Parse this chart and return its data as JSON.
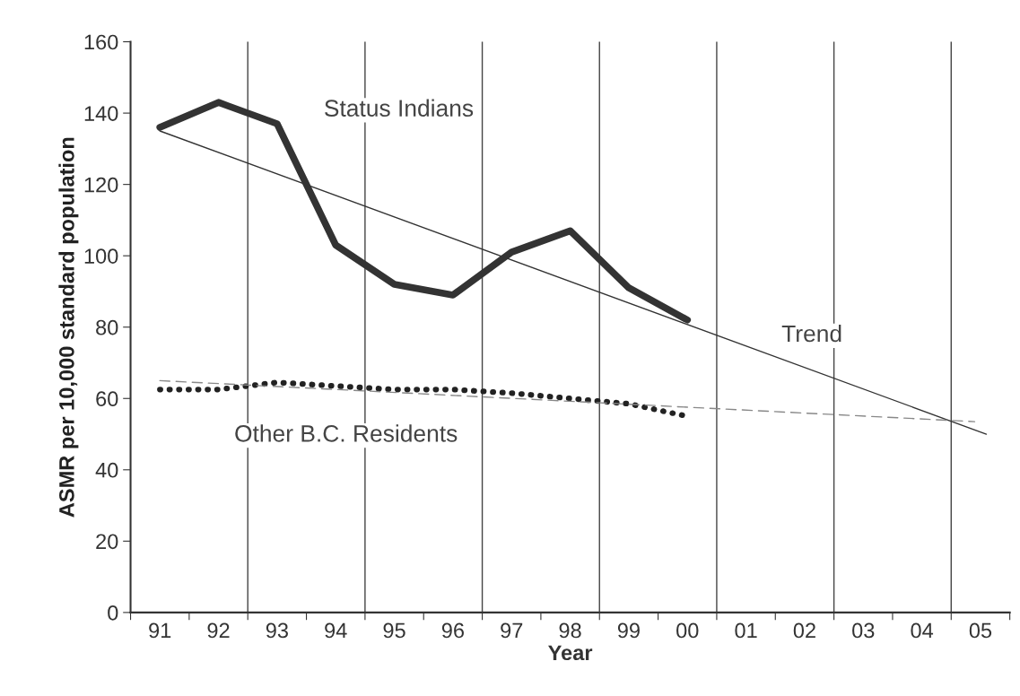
{
  "chart_data": {
    "type": "line",
    "xlabel": "Year",
    "ylabel": "ASMR per 10,000 standard population",
    "xlim": [
      1990.5,
      2005.5
    ],
    "ylim": [
      0,
      160
    ],
    "yticks": [
      0,
      20,
      40,
      60,
      80,
      100,
      120,
      140,
      160
    ],
    "xticks": [
      {
        "value": 1990.5,
        "label": null
      },
      {
        "value": 1991,
        "label": "91"
      },
      {
        "value": 1991.5,
        "label": null
      },
      {
        "value": 1992,
        "label": "92"
      },
      {
        "value": 1992.5,
        "label": null
      },
      {
        "value": 1993,
        "label": "93"
      },
      {
        "value": 1993.5,
        "label": null
      },
      {
        "value": 1994,
        "label": "94"
      },
      {
        "value": 1994.5,
        "label": null
      },
      {
        "value": 1995,
        "label": "95"
      },
      {
        "value": 1995.5,
        "label": null
      },
      {
        "value": 1996,
        "label": "96"
      },
      {
        "value": 1996.5,
        "label": null
      },
      {
        "value": 1997,
        "label": "97"
      },
      {
        "value": 1997.5,
        "label": null
      },
      {
        "value": 1998,
        "label": "98"
      },
      {
        "value": 1998.5,
        "label": null
      },
      {
        "value": 1999,
        "label": "99"
      },
      {
        "value": 1999.5,
        "label": null
      },
      {
        "value": 2000,
        "label": "00"
      },
      {
        "value": 2000.5,
        "label": null
      },
      {
        "value": 2001,
        "label": "01"
      },
      {
        "value": 2001.5,
        "label": null
      },
      {
        "value": 2002,
        "label": "02"
      },
      {
        "value": 2002.5,
        "label": null
      },
      {
        "value": 2003,
        "label": "03"
      },
      {
        "value": 2003.5,
        "label": null
      },
      {
        "value": 2004,
        "label": "04"
      },
      {
        "value": 2004.5,
        "label": null
      },
      {
        "value": 2005,
        "label": "05"
      },
      {
        "value": 2005.5,
        "label": null
      }
    ],
    "grid": false,
    "legend": false,
    "marker": "none",
    "series": [
      {
        "name": "Status Indians",
        "color": "#333333",
        "line_style": "solid",
        "x": [
          1991,
          1992,
          1993,
          1994,
          1995,
          1996,
          1997,
          1998,
          1999,
          2000
        ],
        "values": [
          136,
          143,
          137,
          103,
          92,
          89,
          101,
          107,
          91,
          82
        ]
      },
      {
        "name": "Other B.C. Residents",
        "color": "#222222",
        "line_style": "dotted",
        "x": [
          1991,
          1992,
          1993,
          1994,
          1995,
          1996,
          1997,
          1998,
          1999,
          2000
        ],
        "values": [
          62.5,
          62.5,
          64.5,
          63.5,
          62.5,
          62.5,
          61.5,
          60,
          58.5,
          55
        ]
      },
      {
        "name": "Trend",
        "color": "#333333",
        "line_style": "solid",
        "x": [
          1991,
          2005.1
        ],
        "values": [
          135,
          50
        ]
      },
      {
        "color": "#888888",
        "line_style": "dashed",
        "x": [
          1991,
          2004.9
        ],
        "values": [
          65,
          53.5
        ]
      }
    ],
    "ref_lines": [
      {
        "axis": "x",
        "value": 1992.5,
        "color": "#444444"
      },
      {
        "axis": "x",
        "value": 1994.5,
        "color": "#444444"
      },
      {
        "axis": "x",
        "value": 1996.5,
        "color": "#444444"
      },
      {
        "axis": "x",
        "value": 1998.5,
        "color": "#444444"
      },
      {
        "axis": "x",
        "value": 2000.5,
        "color": "#444444"
      },
      {
        "axis": "x",
        "value": 2002.5,
        "color": "#444444"
      },
      {
        "axis": "x",
        "value": 2004.5,
        "color": "#444444"
      }
    ]
  }
}
